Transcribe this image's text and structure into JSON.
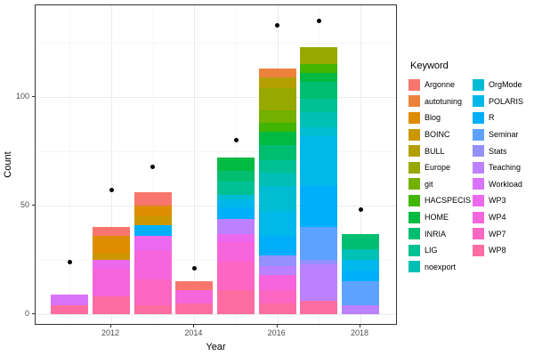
{
  "chart_data": {
    "type": "bar",
    "subtype": "stacked-bar-with-points",
    "title": "",
    "xlabel": "Year",
    "ylabel": "Count",
    "legend_title": "Keyword",
    "x_ticks": [
      2012,
      2014,
      2016,
      2018
    ],
    "x_minor": [
      2011,
      2013,
      2015,
      2017
    ],
    "y_ticks": [
      0,
      50,
      100
    ],
    "y_minor": [
      25,
      75,
      125
    ],
    "xlim": [
      2010.18,
      2018.9
    ],
    "ylim": [
      -5.3,
      142.2
    ],
    "grid": "on",
    "legend_position": "right",
    "point_color": "#000000",
    "keywords": [
      {
        "name": "Argonne",
        "color": "#F8766D"
      },
      {
        "name": "autotuning",
        "color": "#EC823C"
      },
      {
        "name": "Blog",
        "color": "#DE8C00"
      },
      {
        "name": "BOINC",
        "color": "#CB9700"
      },
      {
        "name": "BULL",
        "color": "#B3A000"
      },
      {
        "name": "Europe",
        "color": "#97A900"
      },
      {
        "name": "git",
        "color": "#74B000"
      },
      {
        "name": "HACSPECIS",
        "color": "#41B500"
      },
      {
        "name": "HOME",
        "color": "#00BA42"
      },
      {
        "name": "INRIA",
        "color": "#00BE70"
      },
      {
        "name": "LIG",
        "color": "#00C094"
      },
      {
        "name": "noexport",
        "color": "#00C0B5"
      },
      {
        "name": "OrgMode",
        "color": "#00BDD3"
      },
      {
        "name": "POLARIS",
        "color": "#00B8E9"
      },
      {
        "name": "R",
        "color": "#00AFFA"
      },
      {
        "name": "Seminar",
        "color": "#5EA2FF"
      },
      {
        "name": "Stats",
        "color": "#9491FF"
      },
      {
        "name": "Teaching",
        "color": "#BC81FF"
      },
      {
        "name": "Workload",
        "color": "#D973FC"
      },
      {
        "name": "WP3",
        "color": "#EC69EF"
      },
      {
        "name": "WP4",
        "color": "#F765DC"
      },
      {
        "name": "WP7",
        "color": "#FD66C2"
      },
      {
        "name": "WP8",
        "color": "#FF6CA2"
      }
    ],
    "stack_note": "segments listed top-to-bottom (legend order); bars stack with first legend level on top",
    "bars": [
      {
        "year": 2011,
        "total": 9,
        "segments": [
          [
            "Workload",
            5
          ],
          [
            "WP8",
            4
          ]
        ]
      },
      {
        "year": 2012,
        "total": 40,
        "segments": [
          [
            "Argonne",
            4
          ],
          [
            "Blog",
            8
          ],
          [
            "BOINC",
            3
          ],
          [
            "WP3",
            4
          ],
          [
            "WP4",
            13
          ],
          [
            "WP8",
            8
          ]
        ]
      },
      {
        "year": 2013,
        "total": 56,
        "segments": [
          [
            "Argonne",
            6
          ],
          [
            "Blog",
            5
          ],
          [
            "BOINC",
            4
          ],
          [
            "R",
            5
          ],
          [
            "WP3",
            7
          ],
          [
            "WP4",
            13
          ],
          [
            "WP7",
            12
          ],
          [
            "WP8",
            4
          ]
        ]
      },
      {
        "year": 2014,
        "total": 15,
        "segments": [
          [
            "Argonne",
            4
          ],
          [
            "WP4",
            6
          ],
          [
            "WP8",
            5
          ]
        ]
      },
      {
        "year": 2015,
        "total": 72,
        "segments": [
          [
            "HOME",
            6
          ],
          [
            "INRIA",
            5
          ],
          [
            "LIG",
            6
          ],
          [
            "OrgMode",
            2
          ],
          [
            "POLARIS",
            4
          ],
          [
            "R",
            5
          ],
          [
            "Teaching",
            7
          ],
          [
            "WP3",
            4
          ],
          [
            "WP4",
            9
          ],
          [
            "WP7",
            13
          ],
          [
            "WP8",
            11
          ]
        ]
      },
      {
        "year": 2016,
        "total": 113,
        "segments": [
          [
            "autotuning",
            4
          ],
          [
            "BULL",
            5
          ],
          [
            "Europe",
            10
          ],
          [
            "git",
            6
          ],
          [
            "HACSPECIS",
            4
          ],
          [
            "HOME",
            6
          ],
          [
            "INRIA",
            7
          ],
          [
            "LIG",
            6
          ],
          [
            "noexport",
            6
          ],
          [
            "OrgMode",
            12
          ],
          [
            "POLARIS",
            11
          ],
          [
            "R",
            9
          ],
          [
            "Stats",
            5
          ],
          [
            "Teaching",
            4
          ],
          [
            "WP4",
            7
          ],
          [
            "WP7",
            6
          ],
          [
            "WP8",
            5
          ]
        ]
      },
      {
        "year": 2017,
        "total": 123,
        "segments": [
          [
            "Europe",
            8
          ],
          [
            "HACSPECIS",
            4
          ],
          [
            "HOME",
            4
          ],
          [
            "INRIA",
            8
          ],
          [
            "LIG",
            6
          ],
          [
            "noexport",
            7
          ],
          [
            "OrgMode",
            4
          ],
          [
            "POLARIS",
            23
          ],
          [
            "R",
            19
          ],
          [
            "Seminar",
            15
          ],
          [
            "Stats",
            2
          ],
          [
            "Teaching",
            17
          ],
          [
            "WP8",
            6
          ]
        ]
      },
      {
        "year": 2018,
        "total": 37,
        "segments": [
          [
            "INRIA",
            7
          ],
          [
            "noexport",
            5
          ],
          [
            "POLARIS",
            5
          ],
          [
            "R",
            5
          ],
          [
            "Seminar",
            11
          ],
          [
            "Teaching",
            4
          ]
        ]
      }
    ],
    "points": [
      {
        "year": 2011,
        "value": 24
      },
      {
        "year": 2012,
        "value": 57
      },
      {
        "year": 2013,
        "value": 68
      },
      {
        "year": 2014,
        "value": 21
      },
      {
        "year": 2015,
        "value": 80
      },
      {
        "year": 2016,
        "value": 133
      },
      {
        "year": 2017,
        "value": 135
      },
      {
        "year": 2018,
        "value": 48
      }
    ]
  }
}
